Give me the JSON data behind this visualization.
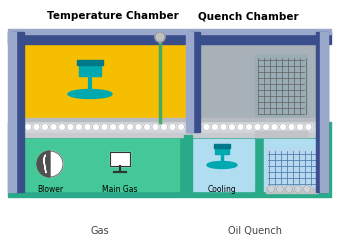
{
  "title_temp": "Temperature Chamber",
  "title_quench": "Quench Chamber",
  "label_gas": "Gas",
  "label_oil": "Oil Quench",
  "label_blower": "Blower",
  "label_main_gas": "Main Gas",
  "label_cooling": "Cooling",
  "color_frame_dark": "#3a4e8c",
  "color_frame_light": "#9aa8cc",
  "color_temp_chamber": "#f5be00",
  "color_quench_chamber": "#a8b0b8",
  "color_teal_outer": "#2aaa88",
  "color_teal_inner": "#44c898",
  "color_cool_blue": "#b0ddf0",
  "color_teal_accent": "#00a8b0",
  "color_dark_teal": "#007888",
  "color_conveyor_bg": "#d0d0d8",
  "color_roller": "#f0f0f0",
  "color_roller_edge": "#a0a0a8",
  "color_rail_top": "#c8c8d0",
  "color_rail_bot": "#b0b0b8",
  "color_grid_line": "#5080b0",
  "color_grid_bg": "#c0d8f0",
  "color_gray_rail": "#b8b8c0",
  "color_white": "#ffffff",
  "color_black": "#111111",
  "color_probe_green": "#44aa66",
  "color_probe_ball": "#c0c0c0"
}
